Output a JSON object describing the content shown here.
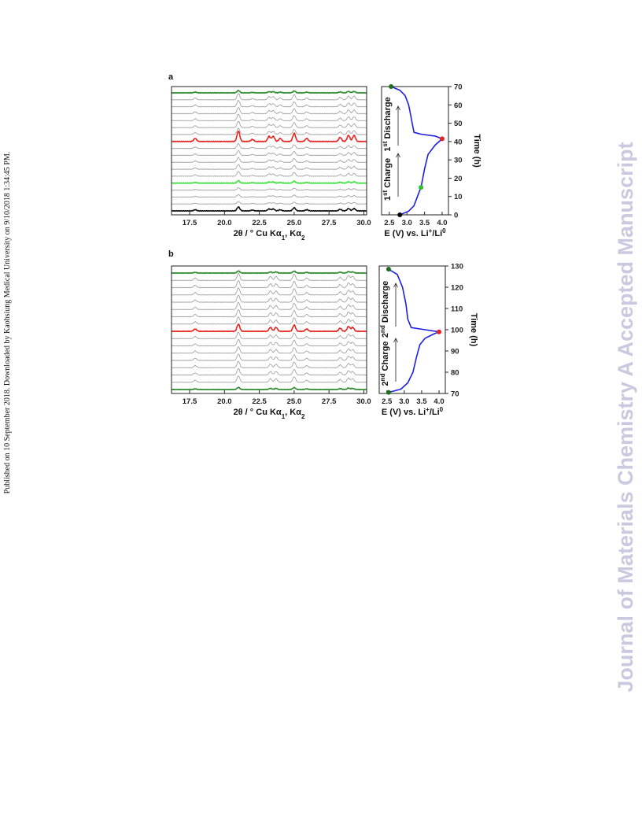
{
  "page_text": {
    "sidebar": "Published on 10 September 2018. Downloaded by Kaohsiung Medical University on 9/10/2018 1:34:45 PM.",
    "watermark": "Journal of Materials Chemistry A Accepted Manuscript"
  },
  "chart_data": [
    {
      "type": "stacked_traces",
      "panel_label": "a",
      "xlabel": [
        {
          "text": "2θ / ° Cu Kα"
        },
        {
          "text": "1",
          "sub": true
        },
        {
          "text": ", Kα"
        },
        {
          "text": "2",
          "sub": true
        }
      ],
      "xlim": [
        16.2,
        30.2
      ],
      "xticks": [
        {
          "value": 17.5,
          "label": "17.5"
        },
        {
          "value": 20,
          "label": "20.0"
        },
        {
          "value": 22.5,
          "label": "22.5"
        },
        {
          "value": 25,
          "label": "25.0"
        },
        {
          "value": 27.5,
          "label": "27.5"
        },
        {
          "value": 30,
          "label": "30.0"
        }
      ],
      "peaks": [
        17.9,
        21.0,
        22.0,
        23.2,
        23.5,
        24.0,
        25.0,
        25.9,
        28.3,
        28.9,
        29.3
      ],
      "intensities": [
        3,
        10,
        2,
        5,
        5,
        3,
        8,
        3,
        4,
        6,
        6
      ],
      "traces": [
        {
          "color": "#111111",
          "scale": 0.5
        },
        {
          "color": "#9a9a9a",
          "scale": 0.3
        },
        {
          "color": "#9a9a9a",
          "scale": 0.3
        },
        {
          "color": "#9a9a9a",
          "scale": 0.3
        },
        {
          "color": "#3ee03e",
          "scale": 0.3
        },
        {
          "color": "#9a9a9a",
          "scale": 0.6
        },
        {
          "color": "#9a9a9a",
          "scale": 0.6
        },
        {
          "color": "#9a9a9a",
          "scale": 0.6
        },
        {
          "color": "#9a9a9a",
          "scale": 0.6
        },
        {
          "color": "#9a9a9a",
          "scale": 0.6
        },
        {
          "color": "#e8231f",
          "scale": 1.3
        },
        {
          "color": "#9a9a9a",
          "scale": 0.8
        },
        {
          "color": "#9a9a9a",
          "scale": 0.8
        },
        {
          "color": "#9a9a9a",
          "scale": 0.8
        },
        {
          "color": "#9a9a9a",
          "scale": 0.8
        },
        {
          "color": "#9a9a9a",
          "scale": 0.8
        },
        {
          "color": "#9a9a9a",
          "scale": 0.8
        },
        {
          "color": "#2e8b2e",
          "scale": 0.3
        }
      ]
    },
    {
      "type": "line",
      "color": "#1f1fe0",
      "xlabel": [
        {
          "text": "E (V) vs. Li"
        },
        {
          "text": "+",
          "sup": true
        },
        {
          "text": "/Li"
        },
        {
          "text": "0",
          "sup": true
        }
      ],
      "ylabel": "Time (h)",
      "xlim": [
        2.28,
        4.18
      ],
      "xticks": [
        2.5,
        {
          "value": 3,
          "label": "3.0"
        },
        3.5,
        {
          "value": 4,
          "label": "4.0"
        }
      ],
      "ylim": [
        0,
        70
      ],
      "yticks": [
        0,
        10,
        20,
        30,
        40,
        50,
        60,
        70
      ],
      "x": [
        2.8,
        3.05,
        3.2,
        3.3,
        3.4,
        3.5,
        3.6,
        3.8,
        4.0,
        3.8,
        3.4,
        3.2,
        3.15,
        3.1,
        3.05,
        2.95,
        2.8,
        2.55
      ],
      "values": [
        0,
        2,
        5,
        10,
        15,
        25,
        33,
        38,
        41.5,
        43,
        44,
        45,
        50,
        55,
        60,
        65,
        68,
        70
      ],
      "points": [
        {
          "x": 2.8,
          "y": 0,
          "color": "#000000"
        },
        {
          "x": 3.4,
          "y": 15,
          "color": "#2ec02e"
        },
        {
          "x": 4.0,
          "y": 41.5,
          "color": "#e8231f"
        },
        {
          "x": 2.55,
          "y": 70,
          "color": "#1e6e1e"
        }
      ],
      "annotations": [
        [
          {
            "text": "1"
          },
          {
            "text": "st",
            "sup": true
          },
          {
            "text": " Charge"
          }
        ],
        [
          {
            "text": "1"
          },
          {
            "text": "st",
            "sup": true
          },
          {
            "text": " Discharge"
          }
        ]
      ]
    },
    {
      "type": "stacked_traces",
      "panel_label": "b",
      "xlabel": [
        {
          "text": "2θ / ° Cu Kα"
        },
        {
          "text": "1",
          "sub": true
        },
        {
          "text": ", Kα"
        },
        {
          "text": "2",
          "sub": true
        }
      ],
      "xlim": [
        16.2,
        30.2
      ],
      "xticks": [
        {
          "value": 17.5,
          "label": "17.5"
        },
        {
          "value": 20,
          "label": "20.0"
        },
        {
          "value": 22.5,
          "label": "22.5"
        },
        {
          "value": 25,
          "label": "25.0"
        },
        {
          "value": 27.5,
          "label": "27.5"
        },
        {
          "value": 30,
          "label": "30.0"
        }
      ],
      "peaks": [
        17.9,
        21.0,
        23.3,
        23.7,
        25.0,
        25.9,
        28.3,
        28.9,
        29.2
      ],
      "intensities": [
        3,
        9,
        5,
        5,
        8,
        3,
        4,
        6,
        5
      ],
      "traces": [
        {
          "color": "#2e8b2e",
          "scale": 0.3
        },
        {
          "color": "#9a9a9a",
          "scale": 0.9
        },
        {
          "color": "#9a9a9a",
          "scale": 0.9
        },
        {
          "color": "#9a9a9a",
          "scale": 0.9
        },
        {
          "color": "#9a9a9a",
          "scale": 0.9
        },
        {
          "color": "#9a9a9a",
          "scale": 0.9
        },
        {
          "color": "#9a9a9a",
          "scale": 0.9
        },
        {
          "color": "#9a9a9a",
          "scale": 0.9
        },
        {
          "color": "#e8231f",
          "scale": 1.0
        },
        {
          "color": "#9a9a9a",
          "scale": 1.0
        },
        {
          "color": "#9a9a9a",
          "scale": 1.0
        },
        {
          "color": "#9a9a9a",
          "scale": 1.0
        },
        {
          "color": "#9a9a9a",
          "scale": 1.0
        },
        {
          "color": "#9a9a9a",
          "scale": 1.0
        },
        {
          "color": "#9a9a9a",
          "scale": 1.0
        },
        {
          "color": "#9a9a9a",
          "scale": 1.0
        },
        {
          "color": "#2e8b2e",
          "scale": 0.3
        }
      ]
    },
    {
      "type": "line",
      "color": "#1f1fe0",
      "xlabel": [
        {
          "text": "E (V) vs. Li"
        },
        {
          "text": "+",
          "sup": true
        },
        {
          "text": "/Li"
        },
        {
          "text": "0",
          "sup": true
        }
      ],
      "ylabel": "Time (h)",
      "xlim": [
        2.28,
        4.18
      ],
      "xticks": [
        2.5,
        {
          "value": 3,
          "label": "3.0"
        },
        3.5,
        {
          "value": 4,
          "label": "4.0"
        }
      ],
      "ylim": [
        70,
        130
      ],
      "yticks": [
        70,
        80,
        90,
        100,
        110,
        120,
        130
      ],
      "x": [
        2.55,
        2.9,
        3.1,
        3.25,
        3.35,
        3.45,
        3.6,
        3.85,
        4.0,
        3.6,
        3.2,
        3.1,
        3.05,
        2.95,
        2.8,
        2.55
      ],
      "values": [
        70.5,
        72,
        75,
        80,
        87,
        93,
        96,
        98,
        99,
        100,
        101,
        105,
        112,
        120,
        126,
        128.5
      ],
      "points": [
        {
          "x": 2.55,
          "y": 70.5,
          "color": "#1e6e1e"
        },
        {
          "x": 4.0,
          "y": 99,
          "color": "#e8231f"
        },
        {
          "x": 2.55,
          "y": 128.5,
          "color": "#1e6e1e"
        }
      ],
      "annotations": [
        [
          {
            "text": "2"
          },
          {
            "text": "nd",
            "sup": true
          },
          {
            "text": " Charge"
          }
        ],
        [
          {
            "text": "2"
          },
          {
            "text": "nd",
            "sup": true
          },
          {
            "text": " Discharge"
          }
        ]
      ]
    }
  ]
}
